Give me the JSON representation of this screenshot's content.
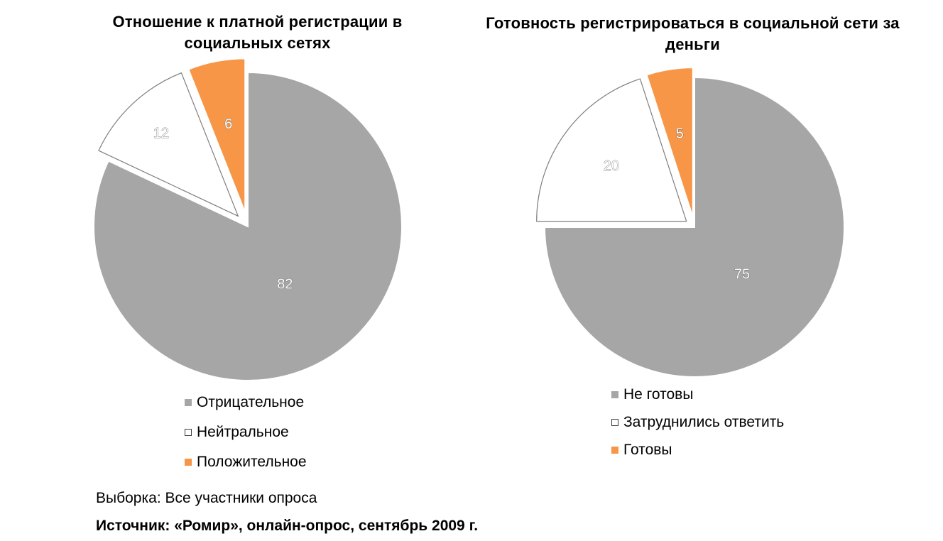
{
  "chart_data": [
    {
      "type": "pie",
      "title": "Отношение к платной регистрации в социальных сетях",
      "slices": [
        {
          "name": "Отрицательное",
          "value": 82,
          "color": "#a6a6a6"
        },
        {
          "name": "Нейтральное",
          "value": 12,
          "color": "#ffffff"
        },
        {
          "name": "Положительное",
          "value": 6,
          "color": "#f79646"
        }
      ],
      "exploded": [
        "Нейтральное",
        "Положительное"
      ],
      "legend": "bottom"
    },
    {
      "type": "pie",
      "title": "Готовность регистрироваться в социальной сети за деньги",
      "slices": [
        {
          "name": "Не готовы",
          "value": 75,
          "color": "#a6a6a6"
        },
        {
          "name": "Затруднились ответить",
          "value": 20,
          "color": "#ffffff"
        },
        {
          "name": "Готовы",
          "value": 5,
          "color": "#f79646"
        }
      ],
      "exploded": [
        "Затруднились ответить",
        "Готовы"
      ],
      "legend": "bottom"
    }
  ],
  "footer": {
    "sample": "Выборка: Все участники опроса",
    "source": "Источник: «Ромир», онлайн-опрос, сентябрь 2009 г."
  }
}
